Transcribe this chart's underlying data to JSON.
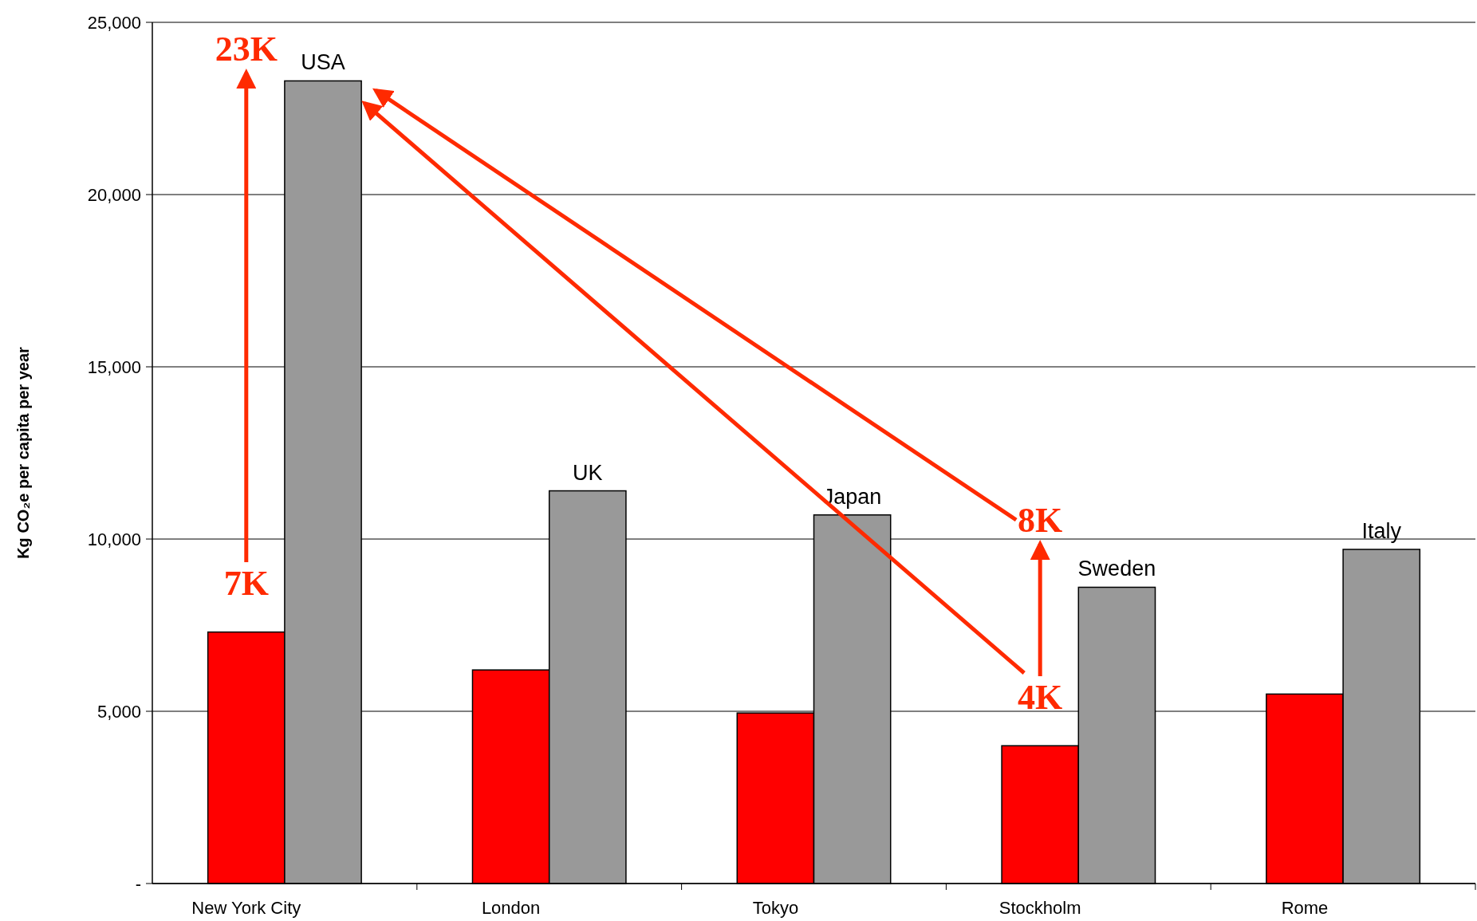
{
  "chart_data": {
    "type": "bar",
    "ylabel": "Kg CO₂e per capita per year",
    "categories": [
      "New York City",
      "London",
      "Tokyo",
      "Stockholm",
      "Rome"
    ],
    "series": [
      {
        "color": "#ff0000",
        "values": [
          7300,
          6200,
          4950,
          4000,
          5500
        ]
      },
      {
        "color": "#999999",
        "values": [
          23300,
          11400,
          10700,
          8600,
          9700
        ]
      }
    ],
    "ylim": [
      0,
      25000
    ],
    "yticks": [
      {
        "value": 0,
        "label": "-"
      },
      {
        "value": 5000,
        "label": "5,000"
      },
      {
        "value": 10000,
        "label": "10,000"
      },
      {
        "value": 15000,
        "label": "15,000"
      },
      {
        "value": 20000,
        "label": "20,000"
      },
      {
        "value": 25000,
        "label": "25,000"
      }
    ],
    "grid": "y",
    "annotations": [
      "USA",
      "UK",
      "Japan",
      "Sweden",
      "Italy",
      "23K",
      "7K",
      "8K",
      "4K"
    ]
  }
}
